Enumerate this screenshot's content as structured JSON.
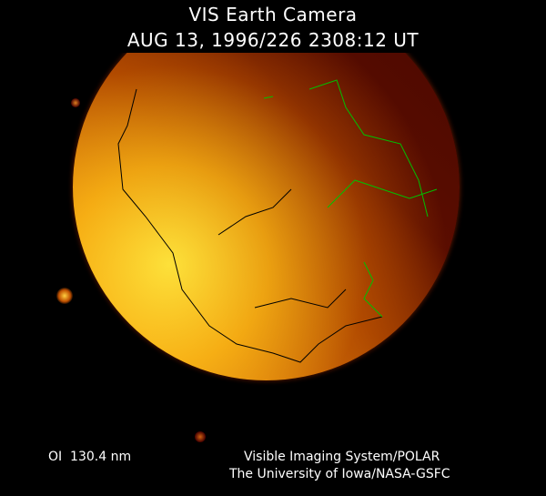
{
  "title": "VIS Earth Camera",
  "timestamp": "AUG 13, 1996/226 2308:12 UT",
  "wavelength": "OI  130.4 nm",
  "credit_line1": "Visible Imaging System/POLAR",
  "credit_line2": "The University of Iowa/NASA-GSFC",
  "colors": {
    "background": "#000000",
    "coastline_day": "#000000",
    "coastline_night": "#00c000",
    "aurora_bright": "#ffd030"
  }
}
